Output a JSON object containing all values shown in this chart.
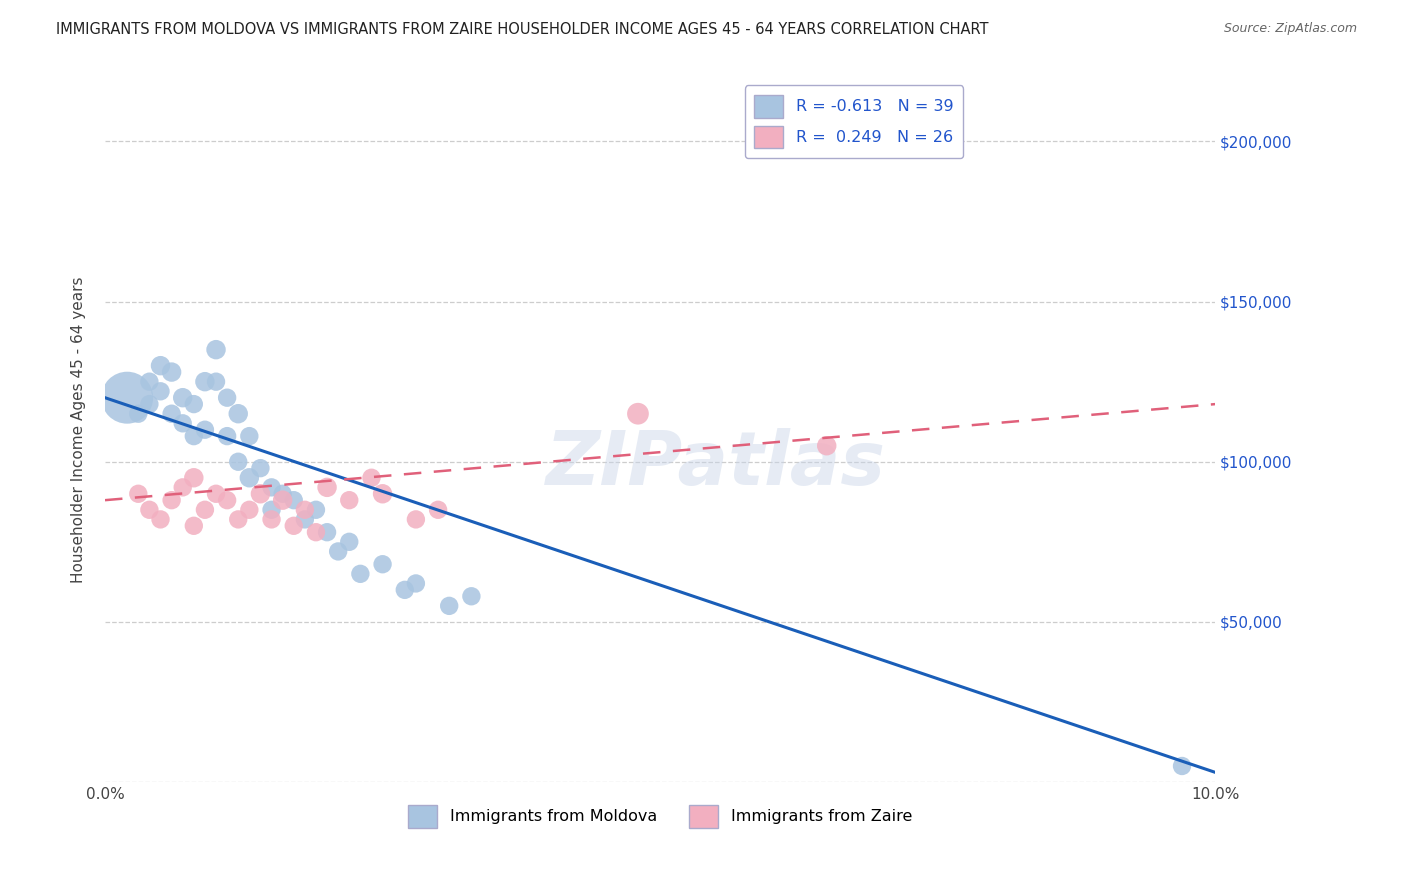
{
  "title": "IMMIGRANTS FROM MOLDOVA VS IMMIGRANTS FROM ZAIRE HOUSEHOLDER INCOME AGES 45 - 64 YEARS CORRELATION CHART",
  "source": "Source: ZipAtlas.com",
  "ylabel": "Householder Income Ages 45 - 64 years",
  "xlim": [
    0.0,
    0.1
  ],
  "ylim": [
    0,
    220000
  ],
  "legend_moldova": "R = -0.613   N = 39",
  "legend_zaire": "R =  0.249   N = 26",
  "moldova_color": "#a8c4e0",
  "zaire_color": "#f2afc0",
  "moldova_line_color": "#1a5eb8",
  "zaire_line_color": "#e0607a",
  "watermark": "ZIPatlas",
  "background_color": "#ffffff",
  "grid_color": "#c8c8c8",
  "moldova_x": [
    0.002,
    0.003,
    0.004,
    0.004,
    0.005,
    0.005,
    0.006,
    0.006,
    0.007,
    0.007,
    0.008,
    0.008,
    0.009,
    0.009,
    0.01,
    0.01,
    0.011,
    0.011,
    0.012,
    0.012,
    0.013,
    0.013,
    0.014,
    0.015,
    0.015,
    0.016,
    0.017,
    0.018,
    0.019,
    0.02,
    0.021,
    0.022,
    0.023,
    0.025,
    0.027,
    0.028,
    0.031,
    0.033,
    0.097
  ],
  "moldova_y": [
    120000,
    115000,
    125000,
    118000,
    130000,
    122000,
    128000,
    115000,
    112000,
    120000,
    108000,
    118000,
    125000,
    110000,
    125000,
    135000,
    120000,
    108000,
    115000,
    100000,
    108000,
    95000,
    98000,
    92000,
    85000,
    90000,
    88000,
    82000,
    85000,
    78000,
    72000,
    75000,
    65000,
    68000,
    60000,
    62000,
    55000,
    58000,
    5000
  ],
  "moldova_sizes": [
    200,
    25,
    25,
    25,
    28,
    25,
    28,
    25,
    25,
    28,
    25,
    25,
    28,
    25,
    25,
    28,
    25,
    25,
    28,
    25,
    25,
    28,
    25,
    25,
    25,
    25,
    25,
    25,
    25,
    25,
    25,
    25,
    25,
    25,
    25,
    25,
    25,
    25,
    25
  ],
  "zaire_x": [
    0.003,
    0.004,
    0.005,
    0.006,
    0.007,
    0.008,
    0.008,
    0.009,
    0.01,
    0.011,
    0.012,
    0.013,
    0.014,
    0.015,
    0.016,
    0.017,
    0.018,
    0.019,
    0.02,
    0.022,
    0.024,
    0.025,
    0.028,
    0.03,
    0.048,
    0.065
  ],
  "zaire_y": [
    90000,
    85000,
    82000,
    88000,
    92000,
    80000,
    95000,
    85000,
    90000,
    88000,
    82000,
    85000,
    90000,
    82000,
    88000,
    80000,
    85000,
    78000,
    92000,
    88000,
    95000,
    90000,
    82000,
    85000,
    115000,
    105000
  ],
  "zaire_sizes": [
    25,
    25,
    25,
    25,
    25,
    25,
    28,
    25,
    25,
    25,
    25,
    25,
    28,
    25,
    28,
    25,
    25,
    25,
    28,
    25,
    25,
    28,
    25,
    25,
    35,
    28
  ],
  "mol_line_x0": 0.0,
  "mol_line_x1": 0.1,
  "mol_line_y0": 120000,
  "mol_line_y1": 3000,
  "zai_line_x0": 0.0,
  "zai_line_x1": 0.1,
  "zai_line_y0": 88000,
  "zai_line_y1": 118000
}
